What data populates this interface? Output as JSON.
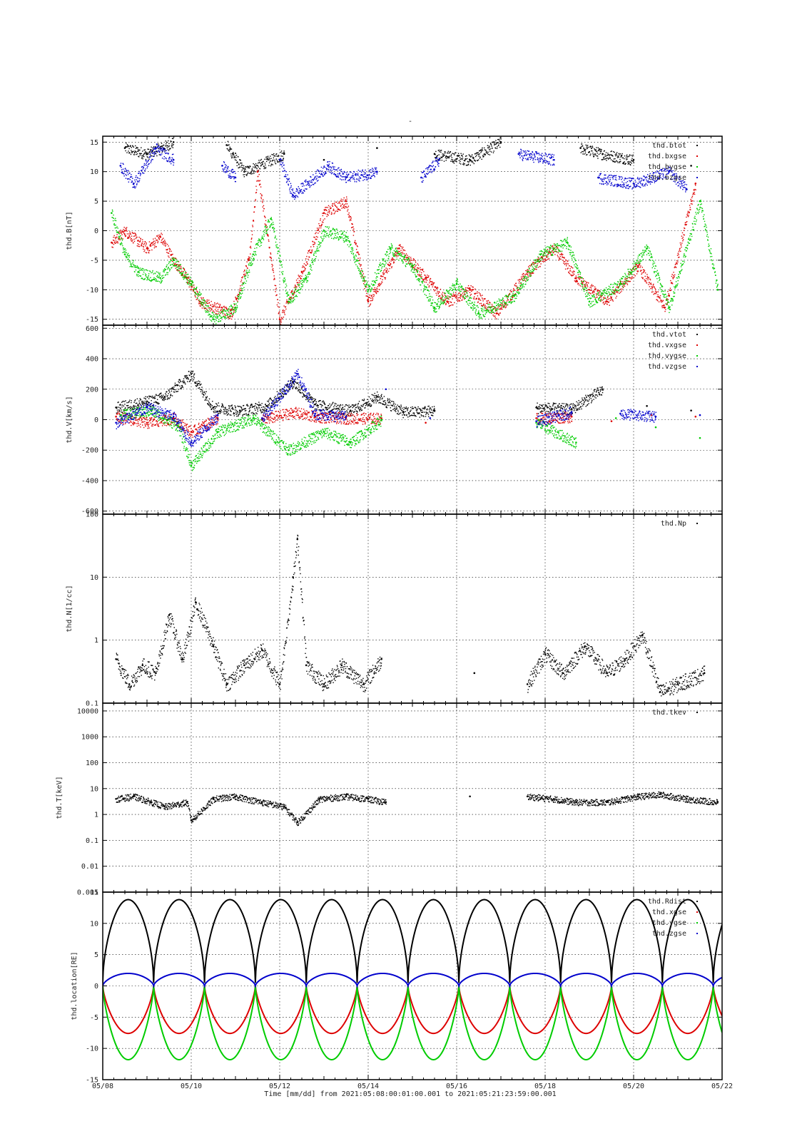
{
  "figure": {
    "top_title": "-",
    "x_axis_label": "Time [mm/dd]  from 2021:05:08:00:01:00.001  to  2021:05:21:23:59:00.001",
    "x_ticks": [
      "05/08",
      "05/10",
      "05/12",
      "05/14",
      "05/16",
      "05/18",
      "05/20",
      "05/22"
    ]
  },
  "colors": {
    "black": "#000000",
    "red": "#dd0000",
    "green": "#00cc00",
    "blue": "#0000cc"
  },
  "chart_data": [
    {
      "type": "scatter",
      "ylabel": "thd.B[nT]",
      "ylim": [
        -16,
        16
      ],
      "yscale": "linear",
      "yticks": [
        "15",
        "10",
        "5",
        "0",
        "-5",
        "-10",
        "-15"
      ],
      "ytick_values": [
        15,
        10,
        5,
        0,
        -5,
        -10,
        -15
      ],
      "xlim_days": [
        0,
        14
      ],
      "grid": true,
      "legend_position": "top-right",
      "series": [
        {
          "name": "thd.btot",
          "color": "black",
          "points": [
            [
              0.5,
              14
            ],
            [
              1.0,
              13
            ],
            [
              1.6,
              15
            ],
            [
              2.8,
              14.5
            ],
            [
              3.2,
              10
            ],
            [
              4.1,
              13
            ],
            [
              5.0,
              12
            ],
            [
              6.2,
              14
            ],
            [
              7.5,
              13
            ],
            [
              8.3,
              12
            ],
            [
              9.0,
              15
            ],
            [
              10.8,
              14
            ],
            [
              11.3,
              13
            ],
            [
              12.0,
              12
            ],
            [
              13.3,
              11
            ]
          ]
        },
        {
          "name": "thd.bxgse",
          "color": "red",
          "points": [
            [
              0.2,
              -2
            ],
            [
              0.5,
              0
            ],
            [
              1.0,
              -3
            ],
            [
              1.3,
              -1
            ],
            [
              1.6,
              -5
            ],
            [
              1.9,
              -8
            ],
            [
              2.2,
              -12
            ],
            [
              2.9,
              -14
            ],
            [
              3.3,
              -5
            ],
            [
              3.5,
              10
            ],
            [
              4.0,
              -15
            ],
            [
              4.5,
              -7
            ],
            [
              5.0,
              3
            ],
            [
              5.5,
              5
            ],
            [
              6.0,
              -12
            ],
            [
              6.7,
              -3
            ],
            [
              7.3,
              -8
            ],
            [
              7.8,
              -12
            ],
            [
              8.3,
              -10
            ],
            [
              8.9,
              -14
            ],
            [
              9.6,
              -7
            ],
            [
              10.2,
              -3
            ],
            [
              10.7,
              -8
            ],
            [
              11.4,
              -12
            ],
            [
              12.1,
              -6
            ],
            [
              12.7,
              -13
            ],
            [
              13.4,
              8
            ]
          ]
        },
        {
          "name": "thd.bygse",
          "color": "green",
          "points": [
            [
              0.2,
              3
            ],
            [
              0.5,
              -4
            ],
            [
              0.8,
              -7
            ],
            [
              1.3,
              -8
            ],
            [
              1.6,
              -5
            ],
            [
              2.0,
              -9
            ],
            [
              2.5,
              -15
            ],
            [
              3.0,
              -13
            ],
            [
              3.4,
              -4
            ],
            [
              3.8,
              2
            ],
            [
              4.2,
              -12
            ],
            [
              4.6,
              -8
            ],
            [
              5.0,
              0
            ],
            [
              5.5,
              -1
            ],
            [
              6.0,
              -10
            ],
            [
              6.5,
              -3
            ],
            [
              7.0,
              -6
            ],
            [
              7.5,
              -13
            ],
            [
              8.0,
              -9
            ],
            [
              8.5,
              -14
            ],
            [
              9.3,
              -11
            ],
            [
              9.9,
              -4
            ],
            [
              10.5,
              -2
            ],
            [
              11.0,
              -12
            ],
            [
              11.7,
              -9
            ],
            [
              12.3,
              -3
            ],
            [
              12.8,
              -13
            ],
            [
              13.5,
              5
            ],
            [
              13.9,
              -10
            ]
          ]
        },
        {
          "name": "thd.bzgse",
          "color": "blue",
          "points": [
            [
              0.4,
              11
            ],
            [
              0.7,
              8
            ],
            [
              1.2,
              14
            ],
            [
              1.6,
              12
            ],
            [
              2.7,
              11
            ],
            [
              3.0,
              9
            ],
            [
              4.0,
              12
            ],
            [
              4.3,
              6
            ],
            [
              5.1,
              11
            ],
            [
              5.5,
              9
            ],
            [
              6.2,
              10
            ],
            [
              7.2,
              9
            ],
            [
              7.6,
              12
            ],
            [
              9.4,
              13
            ],
            [
              10.2,
              12
            ],
            [
              11.2,
              9
            ],
            [
              12.0,
              8
            ],
            [
              12.8,
              10
            ],
            [
              13.2,
              7
            ]
          ]
        }
      ]
    },
    {
      "type": "scatter",
      "ylabel": "thd.V[km/s]",
      "ylim": [
        -620,
        620
      ],
      "yscale": "linear",
      "yticks": [
        "600",
        "400",
        "200",
        "0",
        "-200",
        "-400",
        "-600"
      ],
      "ytick_values": [
        600,
        400,
        200,
        0,
        -200,
        -400,
        -600
      ],
      "xlim_days": [
        0,
        14
      ],
      "grid": true,
      "legend_position": "top-right",
      "series": [
        {
          "name": "thd.vtot",
          "color": "black",
          "points": [
            [
              0.3,
              80
            ],
            [
              1.0,
              120
            ],
            [
              1.4,
              150
            ],
            [
              2.0,
              300
            ],
            [
              2.5,
              80
            ],
            [
              3.1,
              60
            ],
            [
              3.7,
              90
            ],
            [
              4.3,
              250
            ],
            [
              4.8,
              100
            ],
            [
              5.6,
              60
            ],
            [
              6.2,
              150
            ],
            [
              6.8,
              50
            ],
            [
              7.5,
              60
            ],
            [
              9.8,
              80
            ],
            [
              10.6,
              70
            ],
            [
              11.3,
              200
            ],
            [
              12.3,
              90
            ],
            [
              13.3,
              60
            ]
          ]
        },
        {
          "name": "thd.vxgse",
          "color": "red",
          "points": [
            [
              0.3,
              20
            ],
            [
              1.0,
              -20
            ],
            [
              1.6,
              10
            ],
            [
              2.0,
              -80
            ],
            [
              2.6,
              10
            ],
            [
              3.6,
              0
            ],
            [
              4.3,
              50
            ],
            [
              4.8,
              20
            ],
            [
              5.5,
              10
            ],
            [
              6.3,
              10
            ],
            [
              7.3,
              -20
            ],
            [
              9.8,
              10
            ],
            [
              10.6,
              20
            ],
            [
              11.5,
              -10
            ],
            [
              12.4,
              30
            ],
            [
              13.4,
              20
            ]
          ]
        },
        {
          "name": "thd.vygse",
          "color": "green",
          "points": [
            [
              0.4,
              30
            ],
            [
              1.1,
              60
            ],
            [
              1.7,
              -40
            ],
            [
              2.0,
              -300
            ],
            [
              2.6,
              -80
            ],
            [
              3.4,
              10
            ],
            [
              4.2,
              -200
            ],
            [
              5.0,
              -80
            ],
            [
              5.6,
              -150
            ],
            [
              6.3,
              0
            ],
            [
              9.8,
              -20
            ],
            [
              10.7,
              -150
            ],
            [
              11.6,
              10
            ],
            [
              12.5,
              -50
            ],
            [
              13.5,
              -120
            ]
          ]
        },
        {
          "name": "thd.vzgse",
          "color": "blue",
          "points": [
            [
              0.3,
              -20
            ],
            [
              1.0,
              80
            ],
            [
              1.6,
              20
            ],
            [
              2.0,
              -150
            ],
            [
              2.6,
              30
            ],
            [
              3.6,
              10
            ],
            [
              4.4,
              300
            ],
            [
              4.8,
              40
            ],
            [
              5.5,
              20
            ],
            [
              6.4,
              200
            ],
            [
              7.4,
              10
            ],
            [
              9.8,
              -10
            ],
            [
              10.6,
              50
            ],
            [
              11.7,
              40
            ],
            [
              12.5,
              20
            ],
            [
              13.5,
              30
            ]
          ]
        }
      ]
    },
    {
      "type": "scatter",
      "ylabel": "thd.N[1/cc]",
      "ylim": [
        0.1,
        100
      ],
      "yscale": "log",
      "yticks": [
        "100",
        "10",
        "1",
        "0.1"
      ],
      "ytick_values": [
        100,
        10,
        1,
        0.1
      ],
      "xlim_days": [
        0,
        14
      ],
      "grid": true,
      "legend_position": "top-right",
      "series": [
        {
          "name": "thd.Np",
          "color": "black",
          "points": [
            [
              0.3,
              0.5
            ],
            [
              0.6,
              0.2
            ],
            [
              0.9,
              0.4
            ],
            [
              1.2,
              0.3
            ],
            [
              1.5,
              2.5
            ],
            [
              1.8,
              0.5
            ],
            [
              2.1,
              4
            ],
            [
              2.5,
              0.8
            ],
            [
              2.8,
              0.2
            ],
            [
              3.2,
              0.4
            ],
            [
              3.6,
              0.7
            ],
            [
              4.0,
              0.2
            ],
            [
              4.3,
              10
            ],
            [
              4.4,
              40
            ],
            [
              4.6,
              0.4
            ],
            [
              5.0,
              0.2
            ],
            [
              5.4,
              0.4
            ],
            [
              5.9,
              0.2
            ],
            [
              6.3,
              0.5
            ],
            [
              8.4,
              0.3
            ],
            [
              9.6,
              0.2
            ],
            [
              10.0,
              0.6
            ],
            [
              10.4,
              0.3
            ],
            [
              10.9,
              0.8
            ],
            [
              11.4,
              0.3
            ],
            [
              11.8,
              0.5
            ],
            [
              12.2,
              1.2
            ],
            [
              12.6,
              0.15
            ],
            [
              13.0,
              0.2
            ],
            [
              13.6,
              0.3
            ]
          ]
        }
      ]
    },
    {
      "type": "scatter",
      "ylabel": "thd.T[keV]",
      "ylim": [
        0.001,
        20000
      ],
      "yscale": "log",
      "yticks": [
        "10000",
        "1000",
        "100",
        "10",
        "1",
        "0.1",
        "0.01",
        "0.001"
      ],
      "ytick_values": [
        10000,
        1000,
        100,
        10,
        1,
        0.1,
        0.01,
        0.001
      ],
      "xlim_days": [
        0,
        14
      ],
      "grid": true,
      "legend_position": "top-right",
      "series": [
        {
          "name": "thd.tkev",
          "color": "black",
          "points": [
            [
              0.3,
              4
            ],
            [
              0.7,
              5
            ],
            [
              1.1,
              3
            ],
            [
              1.4,
              2
            ],
            [
              1.9,
              3
            ],
            [
              2.0,
              0.6
            ],
            [
              2.5,
              4
            ],
            [
              3.0,
              5
            ],
            [
              3.6,
              3
            ],
            [
              4.1,
              2
            ],
            [
              4.4,
              0.5
            ],
            [
              4.9,
              4
            ],
            [
              5.5,
              5
            ],
            [
              6.0,
              4
            ],
            [
              6.4,
              3
            ],
            [
              8.3,
              5
            ],
            [
              9.6,
              5
            ],
            [
              10.2,
              4
            ],
            [
              10.7,
              3
            ],
            [
              11.4,
              3
            ],
            [
              12.1,
              5
            ],
            [
              12.6,
              6
            ],
            [
              13.2,
              4
            ],
            [
              13.9,
              3
            ]
          ]
        }
      ]
    },
    {
      "type": "line",
      "ylabel": "thd.location[RE]",
      "ylim": [
        -15,
        15
      ],
      "yscale": "linear",
      "yticks": [
        "15",
        "10",
        "5",
        "0",
        "-5",
        "-10",
        "-15"
      ],
      "ytick_values": [
        15,
        10,
        5,
        0,
        -5,
        -10,
        -15
      ],
      "xlim_days": [
        0,
        14
      ],
      "grid": true,
      "legend_position": "top-right",
      "orbit_period_days": 1.15,
      "series": [
        {
          "name": "thd.Rdist",
          "color": "black",
          "apogee": 13.3
        },
        {
          "name": "thd.xgse",
          "color": "red",
          "minimum": -7.6
        },
        {
          "name": "thd.ygse",
          "color": "green",
          "minimum": -11.8
        },
        {
          "name": "thd.zgse",
          "color": "blue",
          "maximum": 2.0
        }
      ]
    }
  ]
}
